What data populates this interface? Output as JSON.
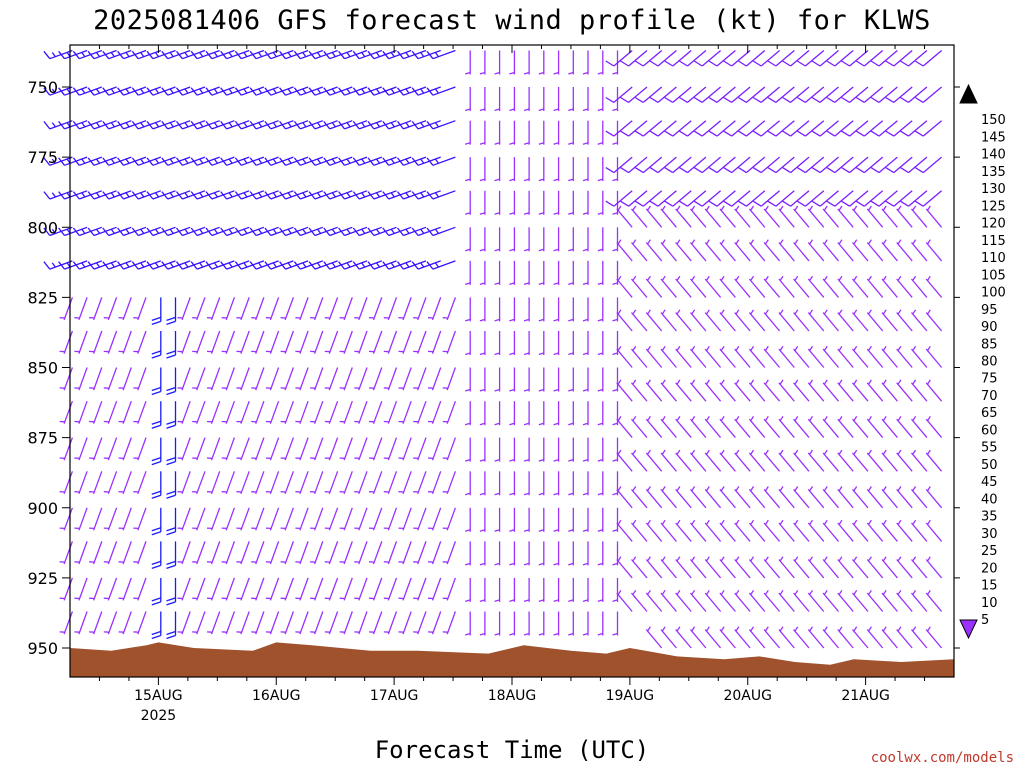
{
  "chart_data": {
    "type": "wind-barb-profile",
    "title": "2025081406 GFS forecast wind profile (kt) for KLWS",
    "xlabel": "Forecast Time (UTC)",
    "ylabel": "",
    "credit": "coolwx.com/models",
    "x_range_days_aug": [
      14.25,
      21.75
    ],
    "x_ticks": [
      {
        "day": 15,
        "label": "15AUG",
        "sublabel": "2025"
      },
      {
        "day": 16,
        "label": "16AUG",
        "sublabel": ""
      },
      {
        "day": 17,
        "label": "17AUG",
        "sublabel": ""
      },
      {
        "day": 18,
        "label": "18AUG",
        "sublabel": ""
      },
      {
        "day": 19,
        "label": "19AUG",
        "sublabel": ""
      },
      {
        "day": 20,
        "label": "20AUG",
        "sublabel": ""
      },
      {
        "day": 21,
        "label": "21AUG",
        "sublabel": ""
      }
    ],
    "y_axis": {
      "inverted": true,
      "range_hpa": [
        760,
        972
      ],
      "ticks": [
        750,
        775,
        800,
        825,
        850,
        875,
        900,
        925,
        950
      ]
    },
    "pressure_levels": [
      737,
      750,
      762,
      775,
      787,
      800,
      812,
      825,
      837,
      850,
      862,
      875,
      887,
      900,
      912,
      925,
      937,
      950
    ],
    "colorbar": {
      "unit": "kt",
      "levels": [
        5,
        10,
        15,
        20,
        25,
        30,
        35,
        40,
        45,
        50,
        55,
        60,
        65,
        70,
        75,
        80,
        85,
        90,
        95,
        100,
        105,
        110,
        115,
        120,
        125,
        130,
        135,
        140,
        145,
        150
      ],
      "colors": [
        "#9b30ff",
        "#7a1dff",
        "#3a10ff",
        "#1a1aff",
        "#1446ff",
        "#1e6bff",
        "#1e9bff",
        "#1ecfff",
        "#00f0e6",
        "#00e6b4",
        "#00e682",
        "#00e650",
        "#20e620",
        "#5ae61e",
        "#9be61e",
        "#d2f01e",
        "#ffff00",
        "#ffe600",
        "#ffcd00",
        "#ffb400",
        "#ff9b00",
        "#ff8200",
        "#ff5a00",
        "#ff3200",
        "#ff0000",
        "#ff003c",
        "#ff0078",
        "#ff00aa",
        "#ff00dc",
        "#e600e6"
      ]
    },
    "terrain_color": "#a0522d",
    "terrain_surface_pressure": [
      {
        "day": 14.25,
        "p": 950
      },
      {
        "day": 14.6,
        "p": 951
      },
      {
        "day": 14.9,
        "p": 949
      },
      {
        "day": 15.0,
        "p": 948
      },
      {
        "day": 15.3,
        "p": 950
      },
      {
        "day": 15.8,
        "p": 951
      },
      {
        "day": 16.0,
        "p": 948
      },
      {
        "day": 16.3,
        "p": 949
      },
      {
        "day": 16.8,
        "p": 951
      },
      {
        "day": 17.2,
        "p": 951
      },
      {
        "day": 17.8,
        "p": 952
      },
      {
        "day": 18.1,
        "p": 949
      },
      {
        "day": 18.5,
        "p": 951
      },
      {
        "day": 18.8,
        "p": 952
      },
      {
        "day": 19.0,
        "p": 950
      },
      {
        "day": 19.4,
        "p": 953
      },
      {
        "day": 19.8,
        "p": 954
      },
      {
        "day": 20.1,
        "p": 953
      },
      {
        "day": 20.4,
        "p": 955
      },
      {
        "day": 20.7,
        "p": 956
      },
      {
        "day": 20.9,
        "p": 954
      },
      {
        "day": 21.3,
        "p": 955
      },
      {
        "day": 21.75,
        "p": 954
      }
    ],
    "wind_regimes": [
      {
        "days": [
          14.25,
          17.6
        ],
        "levels_hpa": [
          737,
          825
        ],
        "dir_deg": 250,
        "speed_kt": 15
      },
      {
        "days": [
          14.25,
          17.6
        ],
        "levels_hpa": [
          825,
          950
        ],
        "dir_deg": 200,
        "speed_kt": 8
      },
      {
        "days": [
          15.0,
          15.2
        ],
        "levels_hpa": [
          825,
          950
        ],
        "dir_deg": 180,
        "speed_kt": 20
      },
      {
        "days": [
          17.6,
          19.0
        ],
        "levels_hpa": [
          737,
          950
        ],
        "dir_deg": 180,
        "speed_kt": 8
      },
      {
        "days": [
          19.0,
          21.75
        ],
        "levels_hpa": [
          737,
          800
        ],
        "dir_deg": 230,
        "speed_kt": 10
      },
      {
        "days": [
          19.0,
          21.75
        ],
        "levels_hpa": [
          800,
          950
        ],
        "dir_deg": 320,
        "speed_kt": 6
      }
    ]
  }
}
